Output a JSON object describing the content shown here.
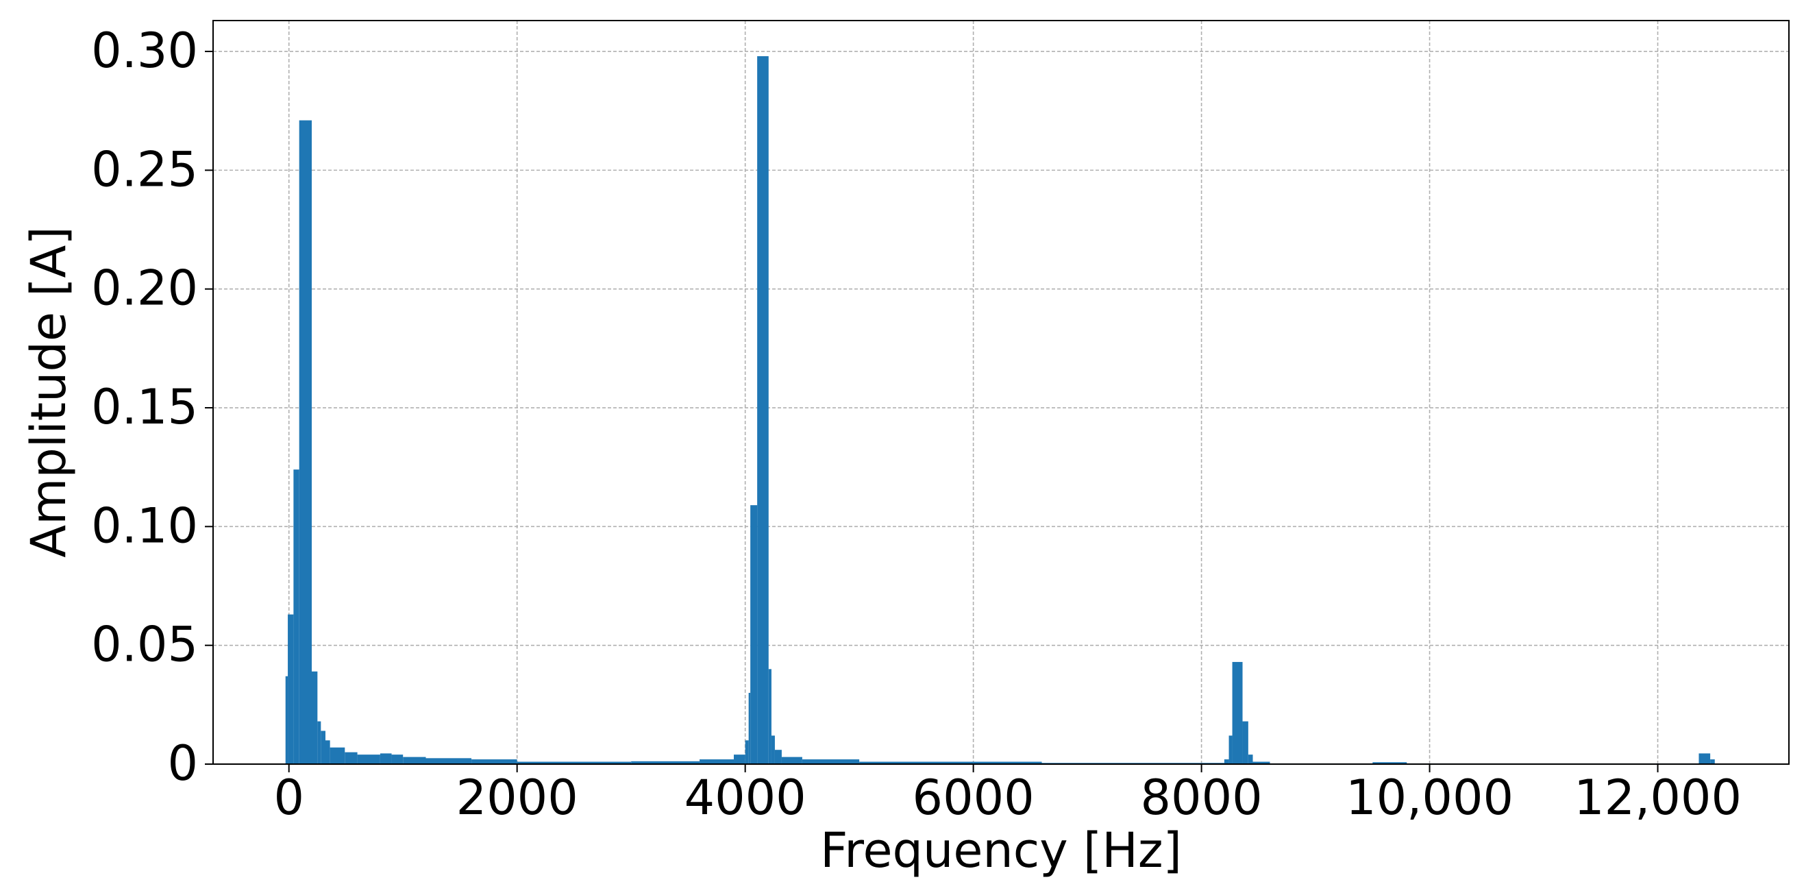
{
  "chart_data": {
    "type": "histogram",
    "x_label": "Frequency [Hz]",
    "y_label": "Amplitude [A]",
    "bins": [
      -30,
      -10,
      40,
      90,
      200,
      250,
      280,
      320,
      360,
      490,
      600,
      800,
      900,
      1000,
      1200,
      1600,
      2000,
      3000,
      3600,
      3900,
      4000,
      4030,
      4045,
      4105,
      4205,
      4230,
      4260,
      4320,
      4500,
      5000,
      6600,
      8200,
      8240,
      8270,
      8360,
      8410,
      8450,
      8600,
      9500,
      9800,
      12360,
      12460,
      12500
    ],
    "values": [
      0.037,
      0.063,
      0.124,
      0.271,
      0.039,
      0.018,
      0.014,
      0.01,
      0.007,
      0.005,
      0.004,
      0.0045,
      0.004,
      0.003,
      0.0025,
      0.002,
      0.001,
      0.0012,
      0.002,
      0.004,
      0.01,
      0.03,
      0.109,
      0.298,
      0.04,
      0.012,
      0.006,
      0.003,
      0.002,
      0.001,
      0.0005,
      0.002,
      0.012,
      0.043,
      0.018,
      0.004,
      0.001,
      0.0003,
      0.0008,
      0.0003,
      0.0045,
      0.002
    ],
    "color": "#1f77b4",
    "xlim": [
      -665,
      13150
    ],
    "xticks": [
      0,
      2000,
      4000,
      6000,
      8000,
      {
        "value": 10000,
        "label": "10,000"
      },
      {
        "value": 12000,
        "label": "12,000"
      }
    ],
    "ylim": [
      0,
      0.313
    ],
    "yticks": [
      0,
      0.05,
      {
        "value": 0.1,
        "label": "0.10"
      },
      0.15,
      {
        "value": 0.2,
        "label": "0.20"
      },
      0.25,
      {
        "value": 0.3,
        "label": "0.30"
      }
    ],
    "grid": true
  }
}
